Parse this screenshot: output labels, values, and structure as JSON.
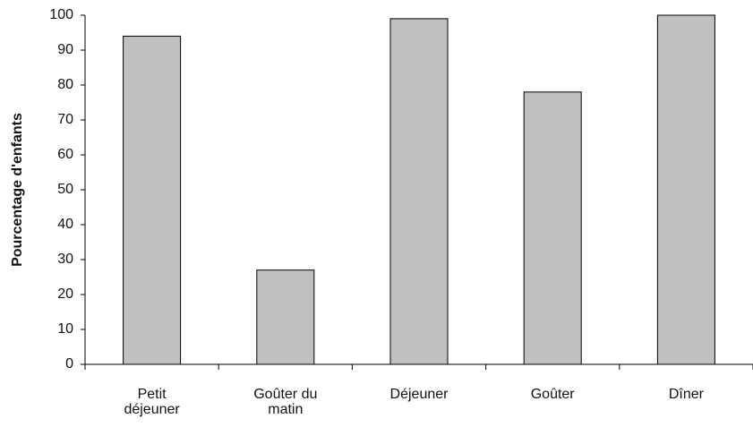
{
  "chart_data": {
    "type": "bar",
    "y_label": "Pourcentage d'enfants",
    "categories": [
      "Petit déjeuner",
      "Goûter du matin",
      "Déjeuner",
      "Goûter",
      "Dîner"
    ],
    "values": [
      94,
      27,
      99,
      78,
      100
    ],
    "color": "#c0c0c0",
    "ylim": [
      0,
      100
    ],
    "yticks": [
      0,
      10,
      20,
      30,
      40,
      50,
      60,
      70,
      80,
      90,
      100
    ],
    "grid": false
  }
}
